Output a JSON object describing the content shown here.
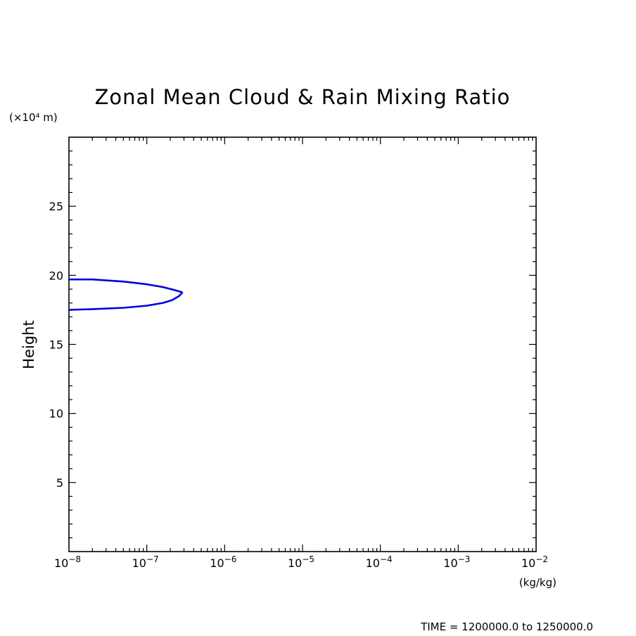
{
  "chart_data": {
    "type": "line",
    "title": "Zonal Mean Cloud & Rain Mixing Ratio",
    "ylabel": "Height",
    "yunits": "(×10⁴ m)",
    "xunits": "(kg/kg)",
    "xscale": "log",
    "xlim": [
      1e-08,
      0.01
    ],
    "ylim": [
      0,
      30
    ],
    "yticks": [
      5,
      10,
      15,
      20,
      25
    ],
    "ytick_labels": [
      "5",
      "10",
      "15",
      "20",
      "25"
    ],
    "xticks": [
      1e-08,
      1e-07,
      1e-06,
      1e-05,
      0.0001,
      0.001,
      0.01
    ],
    "xtick_labels": [
      {
        "base": "10",
        "exp": "−8"
      },
      {
        "base": "10",
        "exp": "−7"
      },
      {
        "base": "10",
        "exp": "−6"
      },
      {
        "base": "10",
        "exp": "−5"
      },
      {
        "base": "10",
        "exp": "−4"
      },
      {
        "base": "10",
        "exp": "−3"
      },
      {
        "base": "10",
        "exp": "−2"
      }
    ],
    "grid": false,
    "series": [
      {
        "color": "#0000dd",
        "points": [
          [
            1e-08,
            19.7
          ],
          [
            2e-08,
            19.7
          ],
          [
            5e-08,
            19.55
          ],
          [
            1e-07,
            19.35
          ],
          [
            1.6e-07,
            19.15
          ],
          [
            2.2e-07,
            18.95
          ],
          [
            2.75e-07,
            18.8
          ],
          [
            2.85e-07,
            18.75
          ],
          [
            2.6e-07,
            18.5
          ],
          [
            2.1e-07,
            18.2
          ],
          [
            1.6e-07,
            18.0
          ],
          [
            1e-07,
            17.8
          ],
          [
            5e-08,
            17.65
          ],
          [
            2e-08,
            17.55
          ],
          [
            1e-08,
            17.5
          ]
        ]
      }
    ]
  },
  "footer": {
    "time_text": "TIME = 1200000.0 to 1250000.0"
  }
}
